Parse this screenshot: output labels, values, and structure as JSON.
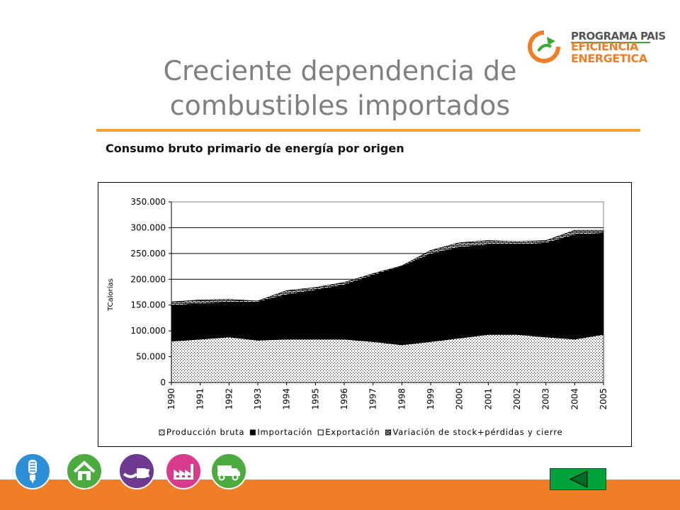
{
  "logo": {
    "line1": "PROGRAMA PAIS",
    "line2": "EFICIENCIA",
    "line3": "ENERGETICA"
  },
  "title": "Creciente dependencia de combustibles importados",
  "subtitle": "Consumo bruto primario de energía por origen",
  "chart_data": {
    "type": "area",
    "stacked": true,
    "ylabel": "TCalorías",
    "ylim": [
      0,
      350000
    ],
    "yticks": [
      0,
      50000,
      100000,
      150000,
      200000,
      250000,
      300000,
      350000
    ],
    "ytick_labels": [
      "0",
      "50.000",
      "100.000",
      "150.000",
      "200.000",
      "250.000",
      "300.000",
      "350.000"
    ],
    "categories": [
      "1990",
      "1991",
      "1992",
      "1993",
      "1994",
      "1995",
      "1996",
      "1997",
      "1998",
      "1999",
      "2000",
      "2001",
      "2002",
      "2003",
      "2004",
      "2005"
    ],
    "grid": "horizontal",
    "legend_position": "bottom",
    "series": [
      {
        "name": "Producción bruta",
        "pattern": "dotted",
        "color": "#ffffff",
        "values": [
          80000,
          84000,
          88000,
          82000,
          84000,
          84000,
          84000,
          79000,
          73000,
          79000,
          86000,
          93000,
          93000,
          88000,
          84000,
          93000
        ]
      },
      {
        "name": "Importación",
        "pattern": "solid",
        "color": "#000000",
        "values": [
          69000,
          69000,
          67000,
          74000,
          86000,
          95000,
          105000,
          129000,
          152000,
          170000,
          176000,
          174000,
          174000,
          182000,
          202000,
          196000
        ]
      },
      {
        "name": "Exportación",
        "pattern": "white",
        "color": "#ffffff",
        "values": [
          0,
          0,
          0,
          0,
          0,
          0,
          0,
          0,
          0,
          0,
          0,
          0,
          0,
          0,
          0,
          0
        ]
      },
      {
        "name": "Variación de stock+pérdidas y cierre",
        "pattern": "brick",
        "color": "#ffffff",
        "values": [
          7000,
          7000,
          6000,
          2000,
          8000,
          5000,
          5000,
          3000,
          1000,
          7000,
          9000,
          8000,
          6000,
          5000,
          9000,
          6000
        ]
      }
    ]
  },
  "nav": [
    {
      "name": "lamp",
      "color": "#2d8fd6"
    },
    {
      "name": "house",
      "color": "#4cab3f"
    },
    {
      "name": "plug",
      "color": "#6d3a8f"
    },
    {
      "name": "factory",
      "color": "#d83a8c"
    },
    {
      "name": "truck",
      "color": "#4cab3f"
    }
  ],
  "colors": {
    "accent_orange": "#f07e26",
    "title_rule": "#f3a330",
    "title_gray": "#7f7f7f",
    "back_button_green": "#00a23a"
  }
}
